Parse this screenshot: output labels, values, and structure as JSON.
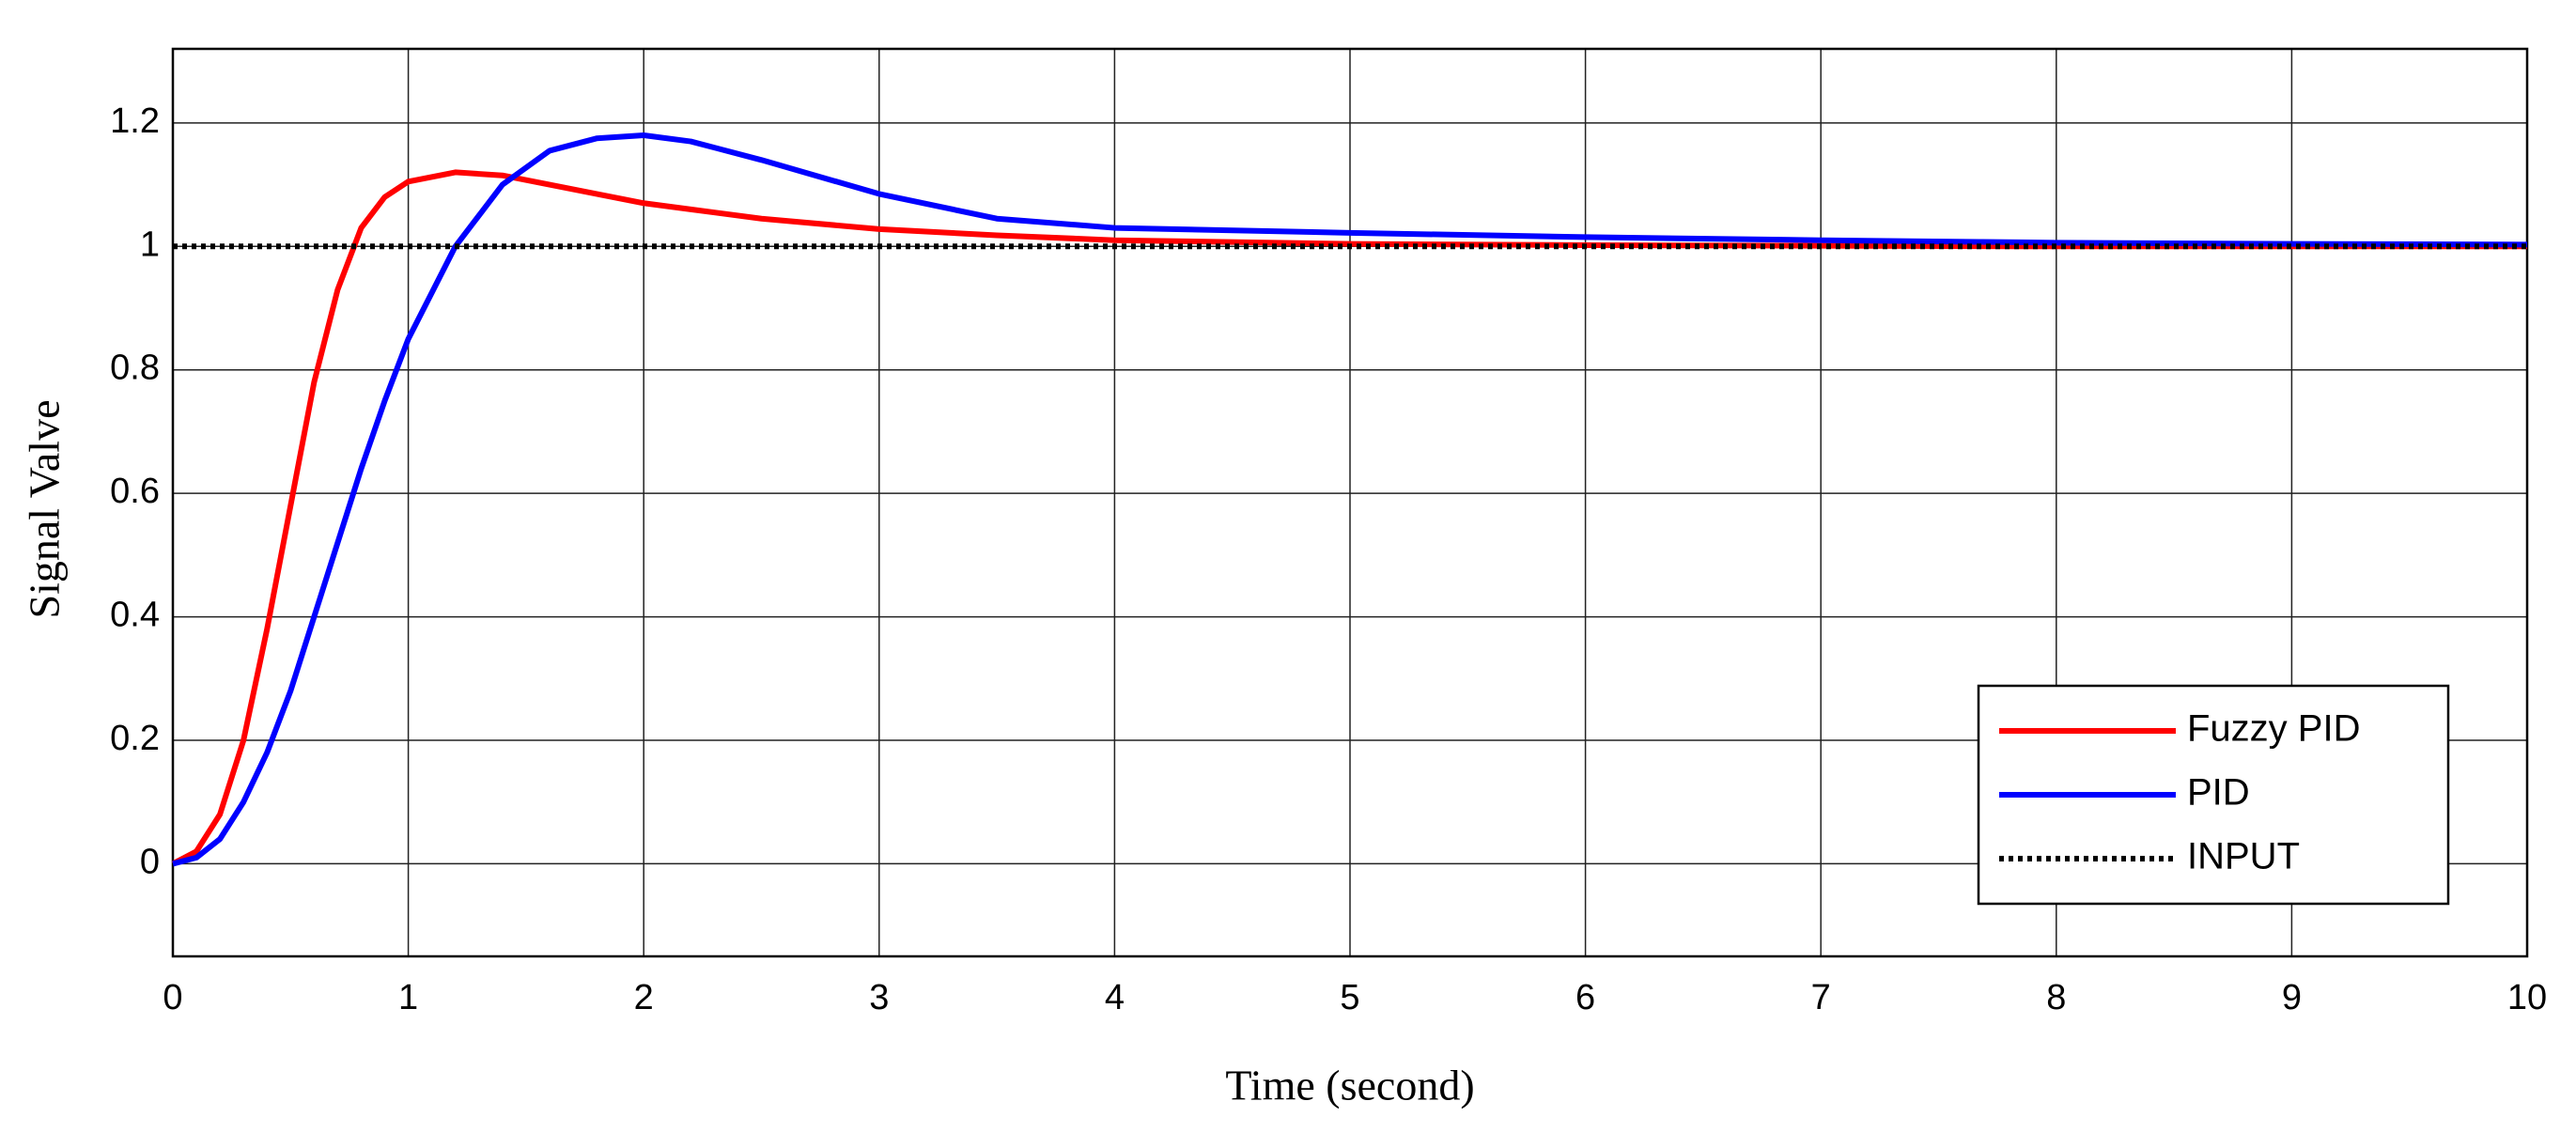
{
  "chart_data": {
    "type": "line",
    "xlabel": "Time (second)",
    "ylabel": "Signal Valve",
    "x": [
      0,
      0.1,
      0.2,
      0.3,
      0.4,
      0.5,
      0.6,
      0.7,
      0.8,
      0.9,
      1.0,
      1.2,
      1.4,
      1.6,
      1.8,
      2.0,
      2.2,
      2.5,
      3.0,
      3.5,
      4.0,
      5.0,
      6.0,
      7.0,
      8.0,
      9.0,
      10.0
    ],
    "series": [
      {
        "name": "Fuzzy PID",
        "color": "#ff0000",
        "style": "solid",
        "values": [
          0,
          0.02,
          0.08,
          0.2,
          0.38,
          0.58,
          0.78,
          0.93,
          1.03,
          1.08,
          1.105,
          1.12,
          1.115,
          1.1,
          1.085,
          1.07,
          1.06,
          1.045,
          1.028,
          1.018,
          1.01,
          1.004,
          1.002,
          1.001,
          1.0,
          1.0,
          1.0
        ]
      },
      {
        "name": "PID",
        "color": "#0000ff",
        "style": "solid",
        "values": [
          0,
          0.01,
          0.04,
          0.1,
          0.18,
          0.28,
          0.4,
          0.52,
          0.64,
          0.75,
          0.85,
          1.0,
          1.1,
          1.155,
          1.175,
          1.18,
          1.17,
          1.14,
          1.085,
          1.045,
          1.03,
          1.022,
          1.015,
          1.01,
          1.006,
          1.004,
          1.003
        ]
      },
      {
        "name": "INPUT",
        "color": "#000000",
        "style": "dotted",
        "values": [
          1,
          1,
          1,
          1,
          1,
          1,
          1,
          1,
          1,
          1,
          1,
          1,
          1,
          1,
          1,
          1,
          1,
          1,
          1,
          1,
          1,
          1,
          1,
          1,
          1,
          1,
          1
        ]
      }
    ],
    "xlim": [
      0,
      10
    ],
    "xticks": [
      0,
      1,
      2,
      3,
      4,
      5,
      6,
      7,
      8,
      9,
      10
    ],
    "ylim": [
      -0.15,
      1.32
    ],
    "yticks": [
      0,
      0.2,
      0.4,
      0.6,
      0.8,
      1,
      1.2
    ],
    "grid": true,
    "legend": "lower right"
  }
}
